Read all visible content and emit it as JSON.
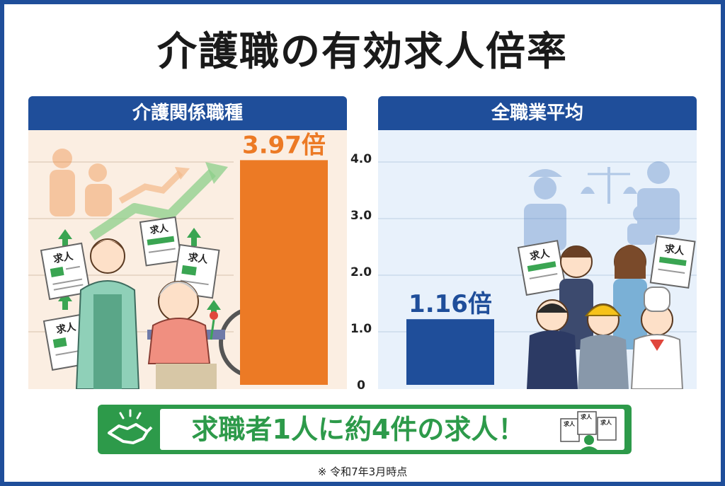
{
  "title": "介護職の有効求人倍率",
  "chart_data": {
    "type": "bar",
    "categories": [
      "介護関係職種",
      "全職業平均"
    ],
    "values": [
      3.97,
      1.16
    ],
    "value_labels": [
      "3.97倍",
      "1.16倍"
    ],
    "ylim": [
      0,
      4.0
    ],
    "y_ticks": [
      "0",
      "1.0",
      "2.0",
      "3.0",
      "4.0"
    ],
    "colors": [
      "#ec7a25",
      "#1f4e9a"
    ],
    "grid": true
  },
  "illustration_labels": {
    "job_offer_card": "求人"
  },
  "banner": {
    "text": "求職者1人に約4件の求人！",
    "icons": [
      "handshake-icon",
      "job-documents-person-icon"
    ]
  },
  "footnote": "※ 令和7年3月時点"
}
